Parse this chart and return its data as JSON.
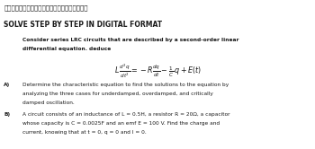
{
  "bg_color": "#ffffff",
  "header_jp": "デジタル形式で段階的に解決　　ありがとう！！",
  "header_en": "SOLVE STEP BY STEP IN DIGITAL FORMAT",
  "intro_line1": "Consider series LRC circuits that are described by a second-order linear",
  "intro_line2": "differential equation. deduce",
  "part_a_label": "A)",
  "part_a_line1": "Determine the characteristic equation to find the solutions to the equation by",
  "part_a_line2": "analyzing the three cases for underdamped, overdamped, and critically",
  "part_a_line3": "damped oscillation.",
  "part_b_label": "B)",
  "part_b_line1": "A circuit consists of an inductance of L = 0.5H, a resistor R = 20Ω, a capacitor",
  "part_b_line2": "whose capacity is C = 0.0025F and an emf E = 100 V. Find the charge and",
  "part_b_line3": "current, knowing that at t = 0, q = 0 and I = 0.",
  "text_color": "#1a1a1a",
  "fs_header_jp": 5.0,
  "fs_header_en": 5.5,
  "fs_body": 4.2
}
